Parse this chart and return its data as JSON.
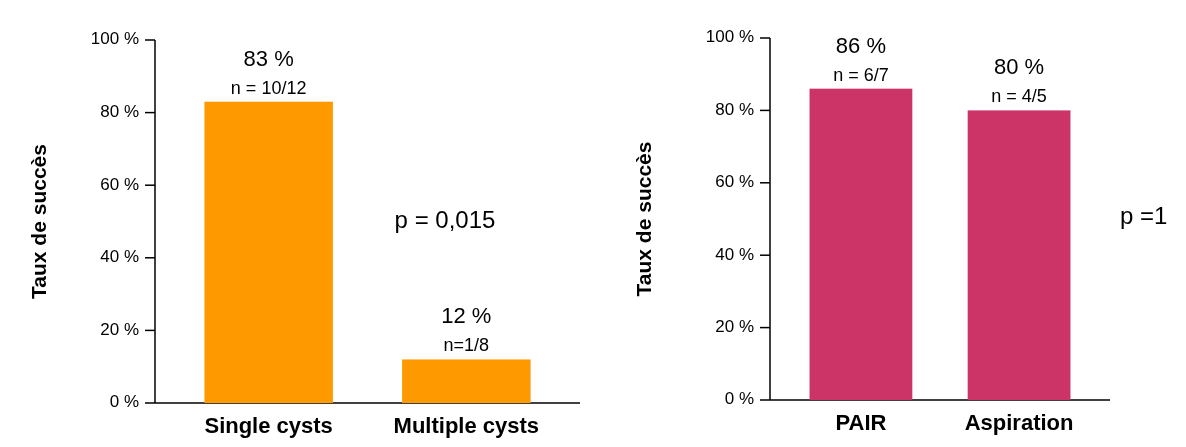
{
  "chart_data": [
    {
      "type": "bar",
      "ylabel": "Taux de succès",
      "categories": [
        "Single cysts",
        "Multiple cysts"
      ],
      "values": [
        83,
        12
      ],
      "value_labels": [
        "83 %",
        "12 %"
      ],
      "color": "#ff9900",
      "ylim": [
        0,
        100
      ],
      "yticks": [
        {
          "value": 0,
          "label": "0 %"
        },
        {
          "value": 20,
          "label": "20 %"
        },
        {
          "value": 40,
          "label": "40 %"
        },
        {
          "value": 60,
          "label": "60 %"
        },
        {
          "value": 80,
          "label": "80 %"
        },
        {
          "value": 100,
          "label": "100 %"
        }
      ],
      "annotations": [
        {
          "text": "n = 10/12",
          "x": "Single cysts",
          "y": 83
        },
        {
          "text": "n=1/8",
          "x": "Multiple cysts",
          "y": 12
        },
        "p = 0,015"
      ]
    },
    {
      "type": "bar",
      "ylabel": "Taux de succès",
      "categories": [
        "PAIR",
        "Aspiration"
      ],
      "values": [
        86,
        80
      ],
      "value_labels": [
        "86 %",
        "80 %"
      ],
      "color": "#cc3366",
      "ylim": [
        0,
        100
      ],
      "yticks": [
        {
          "value": 0,
          "label": "0 %"
        },
        {
          "value": 20,
          "label": "20 %"
        },
        {
          "value": 40,
          "label": "40 %"
        },
        {
          "value": 60,
          "label": "60 %"
        },
        {
          "value": 80,
          "label": "80 %"
        },
        {
          "value": 100,
          "label": "100 %"
        }
      ],
      "annotations": [
        {
          "text": "n = 6/7",
          "x": "PAIR",
          "y": 86
        },
        {
          "text": "n = 4/5",
          "x": "Aspiration",
          "y": 80
        },
        "p =1"
      ]
    }
  ]
}
